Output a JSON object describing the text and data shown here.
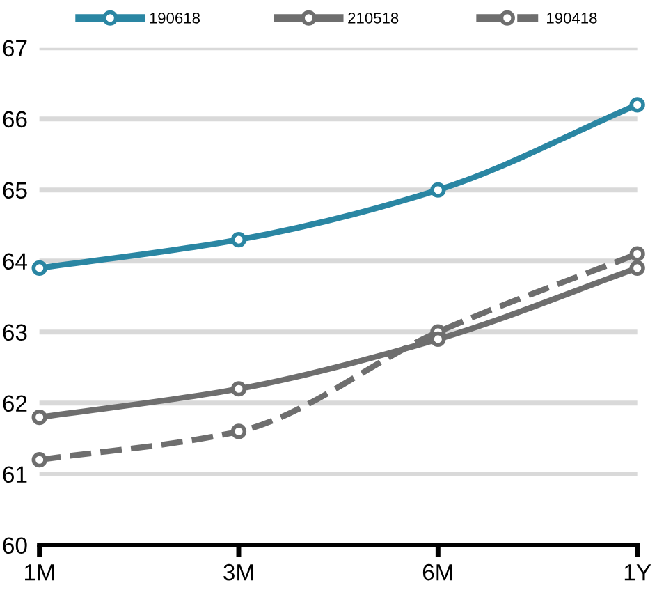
{
  "chart_data": {
    "type": "line",
    "categories": [
      "1M",
      "3M",
      "6M",
      "1Y"
    ],
    "series": [
      {
        "name": "190618",
        "color": "#2a86a3",
        "values": [
          63.9,
          64.3,
          65.0,
          66.2
        ],
        "line_style": "solid"
      },
      {
        "name": "210518",
        "color": "#6e6e6e",
        "values": [
          61.8,
          62.2,
          62.9,
          63.9
        ],
        "line_style": "solid"
      },
      {
        "name": "190418",
        "color": "#6e6e6e",
        "values": [
          61.2,
          61.6,
          63.0,
          64.1
        ],
        "line_style": "dashed"
      }
    ],
    "ylim": [
      60,
      67
    ],
    "yticks": [
      60,
      61,
      62,
      63,
      64,
      65,
      66,
      67
    ],
    "grid": "y",
    "legend": "top",
    "marker": "circle"
  }
}
